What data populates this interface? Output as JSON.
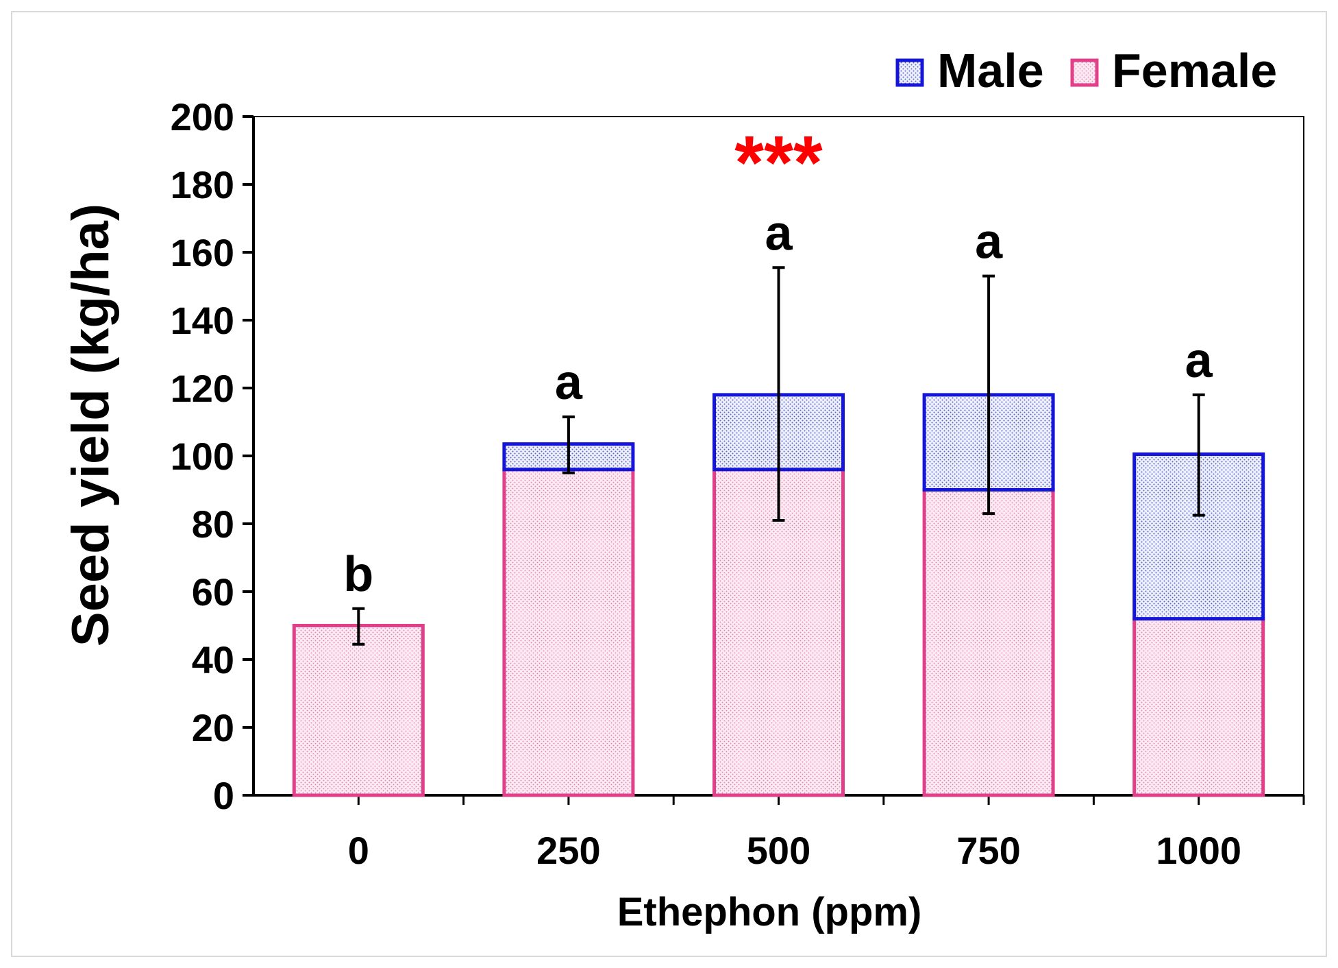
{
  "chart_data": {
    "type": "bar",
    "stacked": true,
    "title": "",
    "xlabel": "Ethephon (ppm)",
    "ylabel": "Seed yield (kg/ha)",
    "ylim": [
      0,
      200
    ],
    "yticks": [
      0,
      20,
      40,
      60,
      80,
      100,
      120,
      140,
      160,
      180,
      200
    ],
    "categories": [
      "0",
      "250",
      "500",
      "750",
      "1000"
    ],
    "series": [
      {
        "name": "Female",
        "values": [
          50,
          96,
          96,
          90,
          52
        ],
        "color": "#e0408a"
      },
      {
        "name": "Male",
        "values": [
          0,
          7.5,
          22,
          28,
          48.5
        ],
        "color": "#1515d8"
      }
    ],
    "totals": [
      50,
      103.5,
      118,
      118,
      100.5
    ],
    "error_bars": [
      {
        "low": 44.5,
        "high": 55
      },
      {
        "low": 95,
        "high": 111.5
      },
      {
        "low": 81,
        "high": 155.5
      },
      {
        "low": 83,
        "high": 153
      },
      {
        "low": 82.5,
        "high": 118
      }
    ],
    "letters": [
      "b",
      "a",
      "a",
      "a",
      "a"
    ],
    "significance": "***",
    "significance_color": "#ff0000",
    "legend": {
      "position": "top-right",
      "entries": [
        "Male",
        "Female"
      ]
    }
  }
}
